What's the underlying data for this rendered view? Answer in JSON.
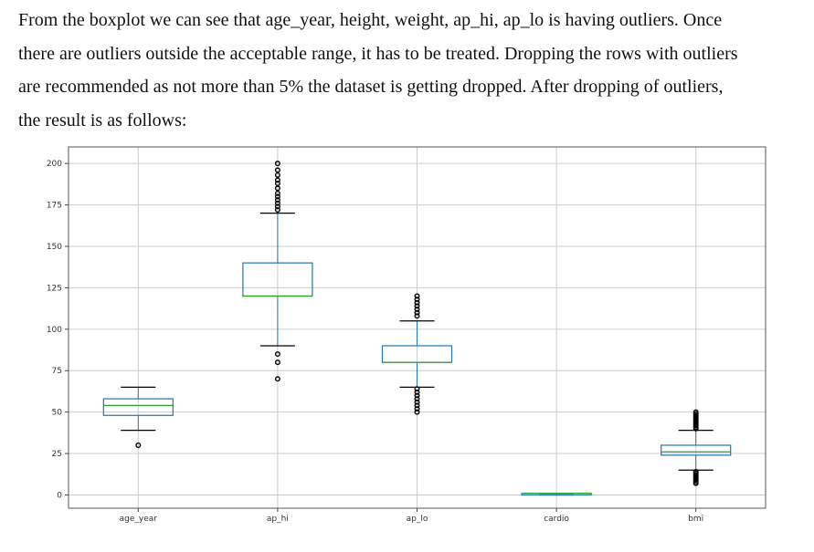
{
  "paragraph": {
    "lines": [
      "From the boxplot we can see that age_year, height, weight, ap_hi, ap_lo is having outliers. Once",
      "there are outliers outside the acceptable range, it has to be treated. Dropping the rows with outliers",
      "are recommended as not more than 5% the dataset is getting dropped. After dropping of outliers,",
      "the result is as follows:"
    ]
  },
  "chart_data": {
    "type": "boxplot",
    "grid": true,
    "ylim": [
      -8,
      210
    ],
    "yticks": [
      0,
      25,
      50,
      75,
      100,
      125,
      150,
      175,
      200
    ],
    "categories": [
      "age_year",
      "ap_hi",
      "ap_lo",
      "cardio",
      "bmi"
    ],
    "boxes": [
      {
        "name": "age_year",
        "whisker_low": 39,
        "q1": 48,
        "median": 54,
        "q3": 58,
        "whisker_high": 65,
        "outliers": [
          30
        ]
      },
      {
        "name": "ap_hi",
        "whisker_low": 90,
        "q1": 120,
        "median": 120,
        "q3": 140,
        "whisker_high": 170,
        "outliers": [
          70,
          80,
          85,
          172,
          174,
          176,
          178,
          180,
          182,
          185,
          188,
          190,
          193,
          196,
          200
        ]
      },
      {
        "name": "ap_lo",
        "whisker_low": 65,
        "q1": 80,
        "median": 80,
        "q3": 90,
        "whisker_high": 105,
        "outliers": [
          50,
          52,
          54,
          56,
          58,
          60,
          62,
          64,
          108,
          110,
          112,
          114,
          116,
          118,
          120
        ]
      },
      {
        "name": "cardio",
        "whisker_low": 0,
        "q1": 0,
        "median": 1,
        "q3": 1,
        "whisker_high": 1,
        "outliers": []
      },
      {
        "name": "bmi",
        "whisker_low": 15,
        "q1": 24,
        "median": 26,
        "q3": 30,
        "whisker_high": 39,
        "outliers": [
          7,
          8,
          9,
          10,
          11,
          12,
          13,
          14,
          40,
          41,
          42,
          43,
          44,
          45,
          46,
          47,
          48,
          49,
          50
        ]
      }
    ],
    "colors": {
      "box": "#1f77b4",
      "median": "#2ca02c",
      "whisker": "#1f77b4",
      "outlier": "#000000",
      "grid": "#cccccc",
      "frame": "#555555"
    }
  }
}
